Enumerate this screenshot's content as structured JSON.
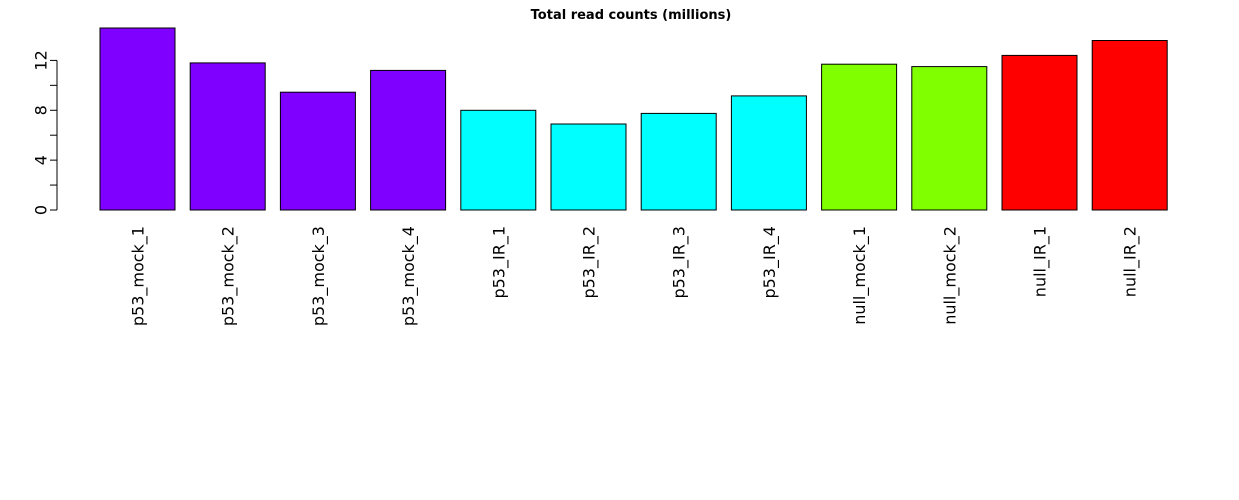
{
  "chart_data": {
    "type": "bar",
    "title": "Total read counts (millions)",
    "xlabel": "",
    "ylabel": "",
    "ylim": [
      0,
      14.6
    ],
    "yticks": [
      0,
      4,
      8,
      12
    ],
    "grid": false,
    "legend": "none",
    "categories": [
      "p53_mock_1",
      "p53_mock_2",
      "p53_mock_3",
      "p53_mock_4",
      "p53_IR_1",
      "p53_IR_2",
      "p53_IR_3",
      "p53_IR_4",
      "null_mock_1",
      "null_mock_2",
      "null_IR_1",
      "null_IR_2"
    ],
    "values": [
      14.6,
      11.8,
      9.45,
      11.2,
      8.0,
      6.9,
      7.75,
      9.15,
      11.7,
      11.5,
      12.4,
      13.6
    ],
    "colors": [
      "#8000FF",
      "#8000FF",
      "#8000FF",
      "#8000FF",
      "#00FFFF",
      "#00FFFF",
      "#00FFFF",
      "#00FFFF",
      "#80FF00",
      "#80FF00",
      "#FF0000",
      "#FF0000"
    ]
  }
}
